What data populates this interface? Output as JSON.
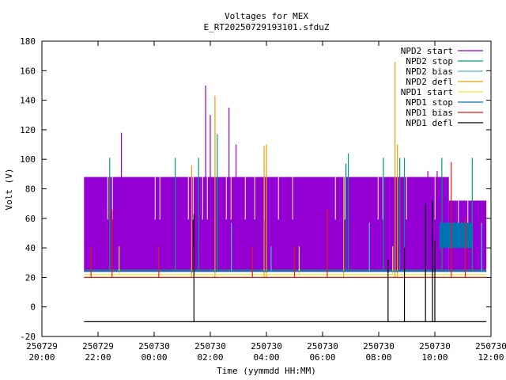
{
  "chart_data": {
    "type": "line",
    "title": "Voltages for MEX",
    "subtitle": "E_RT20250729193101.sfduZ",
    "xlabel": "Time (yymmdd HH:MM)",
    "ylabel": "Volt (V)",
    "ylim": [
      -20,
      180
    ],
    "xlim": [
      "250729 20:00",
      "250730 12:00"
    ],
    "yticks": [
      -20,
      0,
      20,
      40,
      60,
      80,
      100,
      120,
      140,
      160,
      180
    ],
    "xticks": [
      {
        "date": "250729",
        "time": "20:00"
      },
      {
        "date": "250729",
        "time": "22:00"
      },
      {
        "date": "250730",
        "time": "00:00"
      },
      {
        "date": "250730",
        "time": "02:00"
      },
      {
        "date": "250730",
        "time": "04:00"
      },
      {
        "date": "250730",
        "time": "06:00"
      },
      {
        "date": "250730",
        "time": "08:00"
      },
      {
        "date": "250730",
        "time": "10:00"
      },
      {
        "date": "250730",
        "time": "12:00"
      }
    ],
    "grid": false,
    "legend_position": "top-right",
    "series": [
      {
        "name": "NPD2 start",
        "color": "#9400d3",
        "baseline": 41,
        "range": [
          "250729 21:30",
          "250730 11:50"
        ],
        "band": [
          {
            "range": [
              "250729 21:30",
              "250730 10:30"
            ],
            "values": [
              24,
              88
            ]
          },
          {
            "range": [
              "250730 10:30",
              "250730 11:50"
            ],
            "values": [
              24,
              72
            ]
          }
        ],
        "spikes": [
          {
            "time": "250729 22:50",
            "value": 118
          },
          {
            "time": "250730 01:50",
            "value": 150
          },
          {
            "time": "250730 02:00",
            "value": 130
          },
          {
            "time": "250730 02:40",
            "value": 135
          },
          {
            "time": "250730 02:55",
            "value": 110
          },
          {
            "time": "250730 09:45",
            "value": 92
          },
          {
            "time": "250730 10:05",
            "value": 92
          }
        ]
      },
      {
        "name": "NPD2 stop",
        "color": "#009e73",
        "baseline": 25,
        "range": [
          "250729 21:30",
          "250730 11:50"
        ],
        "spikes": [
          {
            "time": "250729 22:25",
            "value": 101
          },
          {
            "time": "250730 00:45",
            "value": 101
          },
          {
            "time": "250730 01:35",
            "value": 101
          },
          {
            "time": "250730 02:15",
            "value": 117
          },
          {
            "time": "250730 06:55",
            "value": 104
          },
          {
            "time": "250730 08:10",
            "value": 101
          },
          {
            "time": "250730 08:45",
            "value": 101
          },
          {
            "time": "250730 08:55",
            "value": 101
          },
          {
            "time": "250730 10:15",
            "value": 101
          },
          {
            "time": "250730 11:20",
            "value": 101
          }
        ]
      },
      {
        "name": "NPD2 bias",
        "color": "#56b4e9",
        "baseline": 24,
        "range": [
          "250729 21:30",
          "250730 11:50"
        ],
        "band": [
          {
            "range": [
              "250730 10:10",
              "250730 11:20"
            ],
            "values": [
              40,
              57
            ]
          }
        ],
        "spikes": [
          {
            "time": "250730 02:45",
            "value": 57
          },
          {
            "time": "250730 04:10",
            "value": 41
          },
          {
            "time": "250730 07:40",
            "value": 57
          },
          {
            "time": "250730 11:40",
            "value": 57
          }
        ]
      },
      {
        "name": "NPD2 defl",
        "color": "#e69f00",
        "baseline": 20,
        "range": [
          "250729 21:30",
          "250730 11:50"
        ],
        "spikes": [
          {
            "time": "250730 01:20",
            "value": 96
          },
          {
            "time": "250730 02:10",
            "value": 143
          },
          {
            "time": "250730 03:55",
            "value": 109
          },
          {
            "time": "250730 04:00",
            "value": 110
          },
          {
            "time": "250730 06:45",
            "value": 88
          },
          {
            "time": "250730 08:35",
            "value": 166
          },
          {
            "time": "250730 08:40",
            "value": 110
          }
        ]
      },
      {
        "name": "NPD1 start",
        "color": "#f0e442",
        "baseline": 22,
        "range": [
          "250729 21:30",
          "250730 11:50"
        ],
        "spikes": [
          {
            "time": "250729 22:45",
            "value": 41
          },
          {
            "time": "250730 01:25",
            "value": 41
          },
          {
            "time": "250730 05:10",
            "value": 41
          },
          {
            "time": "250730 08:30",
            "value": 41
          }
        ]
      },
      {
        "name": "NPD1 stop",
        "color": "#0072b2",
        "baseline": 24,
        "range": [
          "250729 21:30",
          "250730 11:50"
        ],
        "band": [
          {
            "range": [
              "250730 10:10",
              "250730 11:20"
            ],
            "values": [
              40,
              57
            ]
          }
        ],
        "spikes": [
          {
            "time": "250730 06:50",
            "value": 97
          }
        ]
      },
      {
        "name": "NPD1 bias",
        "color": "#e51e10",
        "baseline": 20,
        "range": [
          "250729 21:30",
          "250730 11:50"
        ],
        "spikes": [
          {
            "time": "250729 21:45",
            "value": 41
          },
          {
            "time": "250729 22:30",
            "value": 66
          },
          {
            "time": "250730 00:10",
            "value": 41
          },
          {
            "time": "250730 03:30",
            "value": 41
          },
          {
            "time": "250730 05:00",
            "value": 41
          },
          {
            "time": "250730 06:10",
            "value": 66
          },
          {
            "time": "250730 10:35",
            "value": 98
          },
          {
            "time": "250730 11:05",
            "value": 61
          }
        ]
      },
      {
        "name": "NPD1 defl",
        "color": "#000000",
        "baseline": -10,
        "range": [
          "250729 21:30",
          "250730 11:50"
        ],
        "spikes": [
          {
            "time": "250730 01:25",
            "value": 63
          },
          {
            "time": "250730 08:20",
            "value": 32
          },
          {
            "time": "250730 08:55",
            "value": 40
          },
          {
            "time": "250730 09:40",
            "value": 70
          },
          {
            "time": "250730 09:55",
            "value": 72
          },
          {
            "time": "250730 10:00",
            "value": 45
          }
        ]
      }
    ]
  }
}
